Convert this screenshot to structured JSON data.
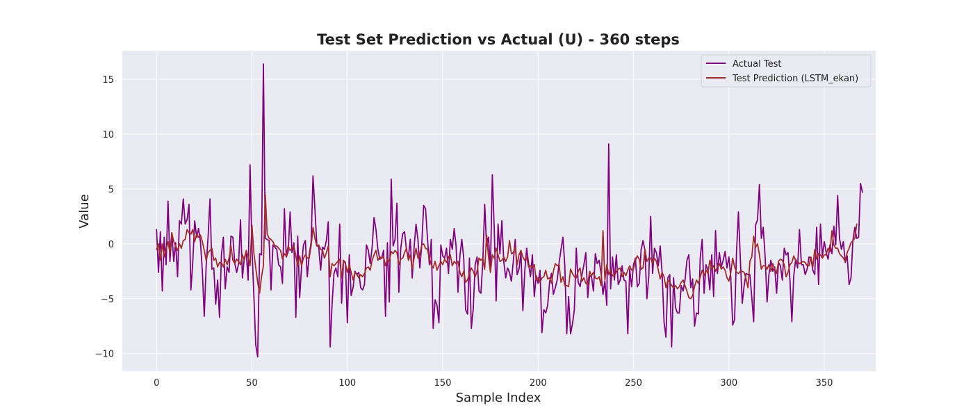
{
  "chart_data": {
    "type": "line",
    "title": "Test Set Prediction vs Actual (U) - 360 steps",
    "xlabel": "Sample Index",
    "ylabel": "Value",
    "xlim": [
      -17.95,
      376.95
    ],
    "ylim": [
      -11.6,
      17.6
    ],
    "xticks": [
      0,
      50,
      100,
      150,
      200,
      250,
      300,
      350
    ],
    "yticks": [
      -10,
      -5,
      0,
      5,
      10,
      15
    ],
    "grid": true,
    "legend_position": "top-right",
    "background": "#eaeaf2",
    "series": [
      {
        "name": "Actual Test",
        "color": "#800080",
        "x_start": 0,
        "x_step": 1,
        "values": [
          1.3,
          -2.6,
          1.1,
          -4.3,
          0.6,
          -1.9,
          3.9,
          -1.6,
          1.0,
          -1.6,
          0.1,
          -3.0,
          2.1,
          1.8,
          4.1,
          1.8,
          2.2,
          3.6,
          -4.2,
          -1.6,
          2.1,
          0.6,
          1.4,
          0.2,
          -2.5,
          -6.6,
          -2.0,
          0.6,
          4.1,
          -2.3,
          -2.2,
          -5.5,
          -3.3,
          -6.7,
          -1.0,
          0.6,
          -4.1,
          -2.1,
          -2.6,
          0.7,
          0.6,
          -1.8,
          -2.6,
          -1.8,
          2.2,
          -3.1,
          -1.3,
          -0.7,
          -3.3,
          7.2,
          -0.4,
          -4.7,
          -9.2,
          -10.3,
          -0.9,
          -1.0,
          16.4,
          0.5,
          0.4,
          0.3,
          -4.2,
          -0.1,
          -0.3,
          -0.5,
          -1.9,
          -2.1,
          -3.6,
          3.2,
          -1.2,
          -0.7,
          2.9,
          -0.8,
          0.1,
          -6.7,
          0.7,
          -4.9,
          -2.1,
          -0.1,
          0.3,
          -3.0,
          -1.0,
          0.1,
          6.2,
          3.2,
          -0.1,
          -0.3,
          -2.4,
          -0.3,
          -0.5,
          0.3,
          2.0,
          -9.4,
          -5.5,
          -2.7,
          -2.2,
          -3.0,
          1.8,
          -5.4,
          -1.5,
          -1.7,
          -7.2,
          -1.0,
          -4.7,
          -4.0,
          -2.5,
          -2.8,
          -2.6,
          -4.0,
          -4.2,
          -3.7,
          -0.1,
          -0.6,
          -1.8,
          -0.3,
          2.4,
          1.3,
          -0.5,
          -1.4,
          -1.3,
          -0.6,
          -6.6,
          0.1,
          -5.3,
          5.9,
          -0.2,
          0.4,
          3.7,
          -4.4,
          -0.4,
          0.9,
          1.1,
          -0.6,
          -1.2,
          0.4,
          -3.1,
          -0.3,
          1.8,
          0.4,
          -2.2,
          -0.1,
          3.5,
          3.2,
          0.5,
          -1.9,
          0.4,
          -7.7,
          -5.1,
          -5.6,
          -7.2,
          -0.1,
          -1.1,
          -1.3,
          -0.4,
          -2.7,
          0.4,
          -0.5,
          1.4,
          -0.2,
          -4.4,
          -1.1,
          0.4,
          -1.3,
          -6.0,
          -6.4,
          -1.3,
          -7.7,
          -5.9,
          -1.9,
          -1.2,
          -4.3,
          -4.5,
          -1.7,
          3.6,
          -0.2,
          0.6,
          -2.3,
          6.3,
          1.4,
          -5.2,
          1.8,
          -0.9,
          2.1,
          -1.6,
          -3.1,
          -2.2,
          -2.6,
          -3.4,
          -1.6,
          0.4,
          -2.8,
          -2.3,
          -0.8,
          -6.1,
          -2.5,
          -0.4,
          -1.8,
          -3.0,
          -1.0,
          -4.8,
          -2.9,
          -3.6,
          -2.4,
          -8.1,
          -6.0,
          -6.3,
          -5.6,
          -3.5,
          -2.7,
          -4.6,
          -4.0,
          -3.3,
          -1.7,
          -0.5,
          0.6,
          -2.0,
          -8.2,
          -4.8,
          -8.2,
          -7.3,
          -6.0,
          -0.4,
          -3.5,
          -3.9,
          -2.8,
          -1.9,
          -0.8,
          -4.9,
          -2.9,
          -3.0,
          -4.3,
          -0.9,
          -1.8,
          -1.5,
          -2.7,
          -4.6,
          -3.4,
          -5.6,
          9.1,
          -4.1,
          -1.2,
          -3.3,
          -1.0,
          -3.7,
          -3.3,
          -2.0,
          -3.3,
          -3.4,
          -8.2,
          -2.3,
          -3.9,
          -1.9,
          -1.3,
          -3.9,
          -3.6,
          -0.5,
          0.3,
          -0.6,
          -5.0,
          -3.0,
          2.5,
          -2.7,
          -0.4,
          -0.8,
          -2.0,
          -0.2,
          -2.7,
          -7.1,
          -8.5,
          -3.1,
          -2.8,
          -9.4,
          -3.1,
          -5.8,
          -6.3,
          -6.3,
          -3.8,
          -4.3,
          -3.3,
          -1.5,
          -1.0,
          -4.0,
          -3.2,
          -7.5,
          -6.3,
          -6.4,
          -1.2,
          0.4,
          -4.5,
          -1.9,
          -2.4,
          -4.2,
          -1.0,
          -4.8,
          1.2,
          -2.7,
          -0.8,
          -2.1,
          -1.5,
          -0.7,
          -2.2,
          -1.2,
          -3.1,
          -7.4,
          -6.9,
          -0.7,
          2.9,
          -1.4,
          -5.4,
          -3.8,
          -2.7,
          -2.8,
          -2.8,
          -4.9,
          -7.1,
          1.7,
          2.2,
          5.4,
          0.5,
          1.5,
          -1.2,
          -5.3,
          -2.8,
          -1.5,
          -2.5,
          -2.1,
          -4.5,
          -1.7,
          -2.0,
          -3.3,
          -0.4,
          -1.0,
          -0.8,
          -3.3,
          -7.1,
          -2.9,
          -1.4,
          -2.2,
          1.3,
          -1.9,
          -1.9,
          -2.8,
          -2.3,
          -1.2,
          -1.3,
          -2.4,
          -2.8,
          1.5,
          -3.7,
          1.8,
          -1.1,
          0.2,
          -0.8,
          -1.4,
          -0.1,
          -0.9,
          1.6,
          -0.1,
          4.4,
          0.5,
          -0.5,
          0.2,
          -1.7,
          -1.1,
          -3.7,
          -3.1,
          0.3,
          1.5,
          0.5,
          0.6,
          5.5,
          4.7
        ]
      },
      {
        "name": "Test Prediction (LSTM_ekan)",
        "color": "#a52a2a",
        "x_start": 0,
        "x_step": 1,
        "values": [
          -0.5,
          0.0,
          -1.5,
          0.0,
          -1.2,
          -0.5,
          0.2,
          -0.8,
          1.0,
          0.2,
          -0.2,
          -0.6,
          0.0,
          -0.4,
          0.3,
          0.4,
          1.3,
          1.0,
          0.9,
          1.3,
          0.2,
          0.9,
          0.6,
          0.8,
          0.2,
          -0.6,
          -1.5,
          -0.8,
          -0.6,
          -0.4,
          -1.5,
          -1.3,
          -2.1,
          -1.7,
          -1.7,
          -2.1,
          -1.4,
          -1.9,
          -1.3,
          -0.2,
          -1.5,
          -1.8,
          -1.4,
          -1.6,
          -1.9,
          -1.0,
          -1.5,
          -0.6,
          -1.2,
          -2.0,
          1.7,
          -0.8,
          -2.2,
          -3.5,
          -4.5,
          -3.0,
          -2.0,
          4.5,
          0.9,
          0.5,
          0.4,
          0.2,
          -0.2,
          -0.2,
          -0.4,
          -0.6,
          -1.4,
          -0.9,
          -1.1,
          -0.2,
          -0.6,
          -0.4,
          -0.2,
          -1.1,
          -2.0,
          -1.1,
          -2.0,
          -1.3,
          -1.0,
          -1.3,
          -1.3,
          -0.2,
          1.5,
          0.5,
          -0.2,
          -0.1,
          -0.5,
          -0.6,
          -1.3,
          -0.8,
          -0.2,
          -3.0,
          -1.8,
          -2.0,
          -1.8,
          -1.6,
          -1.4,
          -3.1,
          -1.5,
          -1.8,
          -2.6,
          -1.9,
          -2.6,
          -3.3,
          -2.6,
          -2.8,
          -3.1,
          -2.8,
          -3.0,
          -2.7,
          -2.2,
          -2.1,
          -2.4,
          -1.5,
          -1.0,
          -0.6,
          -1.5,
          -1.2,
          -1.3,
          -1.2,
          -2.0,
          -1.4,
          -1.6,
          -0.7,
          -0.9,
          -0.6,
          -0.8,
          -1.9,
          -1.4,
          -1.3,
          -0.8,
          -0.4,
          -1.5,
          -1.0,
          -2.3,
          -1.3,
          -0.4,
          -1.3,
          -1.0,
          -0.1,
          0.0,
          -0.4,
          -0.5,
          -1.3,
          -1.9,
          -2.2,
          -1.6,
          -2.4,
          -2.0,
          -1.6,
          -1.9,
          -1.4,
          -1.7,
          -1.2,
          -1.0,
          -2.0,
          -1.6,
          -1.8,
          -1.6,
          -2.6,
          -3.0,
          -2.5,
          -3.5,
          -3.3,
          -2.7,
          -2.2,
          -2.5,
          -3.0,
          -2.5,
          -1.3,
          -1.5,
          -1.3,
          -2.3,
          0.8,
          -1.2,
          -2.6,
          -1.0,
          -1.3,
          -0.4,
          -1.0,
          -1.6,
          -1.5,
          -1.2,
          -1.6,
          -1.2,
          0.3,
          -0.9,
          -0.8,
          -0.3,
          -1.9,
          -1.0,
          -0.6,
          -1.2,
          -1.5,
          -1.2,
          -2.1,
          -2.0,
          -2.2,
          -1.9,
          -3.3,
          -3.1,
          -3.5,
          -3.1,
          -3.0,
          -2.4,
          -3.2,
          -3.1,
          -3.6,
          -2.5,
          -1.8,
          -2.0,
          -1.9,
          -3.5,
          -3.0,
          -3.8,
          -3.8,
          -3.9,
          -2.3,
          -2.7,
          -3.0,
          -3.1,
          -2.5,
          -2.2,
          -3.4,
          -3.1,
          -3.6,
          -3.7,
          -2.5,
          -2.9,
          -2.6,
          -3.1,
          -3.2,
          -3.0,
          -3.8,
          1.2,
          -3.3,
          -1.9,
          -2.8,
          -2.4,
          -2.9,
          -2.9,
          -2.5,
          -2.3,
          -2.2,
          -3.0,
          -2.6,
          -2.9,
          -2.4,
          -2.0,
          -2.4,
          -2.3,
          -1.5,
          -1.1,
          -1.4,
          -2.3,
          -2.2,
          -0.5,
          -1.6,
          -1.3,
          -1.3,
          -1.8,
          -1.3,
          -1.6,
          -2.4,
          -3.2,
          -2.6,
          -3.0,
          -4.0,
          -3.3,
          -3.5,
          -3.8,
          -4.0,
          -3.8,
          -4.1,
          -3.9,
          -3.5,
          -3.3,
          -3.8,
          -4.3,
          -4.9,
          -5.0,
          -4.7,
          -3.9,
          -3.3,
          -3.6,
          -3.0,
          -2.4,
          -2.9,
          -2.4,
          -2.7,
          -1.5,
          -2.3,
          -2.0,
          -2.5,
          -2.1,
          -1.8,
          -2.3,
          -2.1,
          -2.4,
          -3.1,
          -3.4,
          -2.6,
          -1.3,
          -2.1,
          -2.6,
          -2.7,
          -2.5,
          -2.5,
          -2.6,
          -3.2,
          -4.0,
          -1.6,
          -1.2,
          0.7,
          -0.3,
          0.0,
          -1.0,
          -2.3,
          -2.0,
          -2.0,
          -2.3,
          -1.9,
          -2.5,
          -1.8,
          -2.3,
          -2.7,
          -1.6,
          -1.4,
          -1.5,
          -1.9,
          -3.0,
          -2.6,
          -1.9,
          -1.7,
          -1.1,
          -1.5,
          -1.6,
          -1.8,
          -1.7,
          -1.6,
          -1.7,
          -2.0,
          -2.0,
          -1.2,
          -2.1,
          -0.5,
          -1.4,
          -0.9,
          -1.0,
          -1.3,
          -1.0,
          -1.0,
          -0.4,
          -0.7,
          1.2,
          -0.1,
          -0.4,
          -0.4,
          -0.9,
          -1.1,
          -1.3,
          -1.6,
          -0.8,
          -0.4,
          0.1,
          0.3,
          0.5,
          1.8
        ]
      }
    ]
  }
}
